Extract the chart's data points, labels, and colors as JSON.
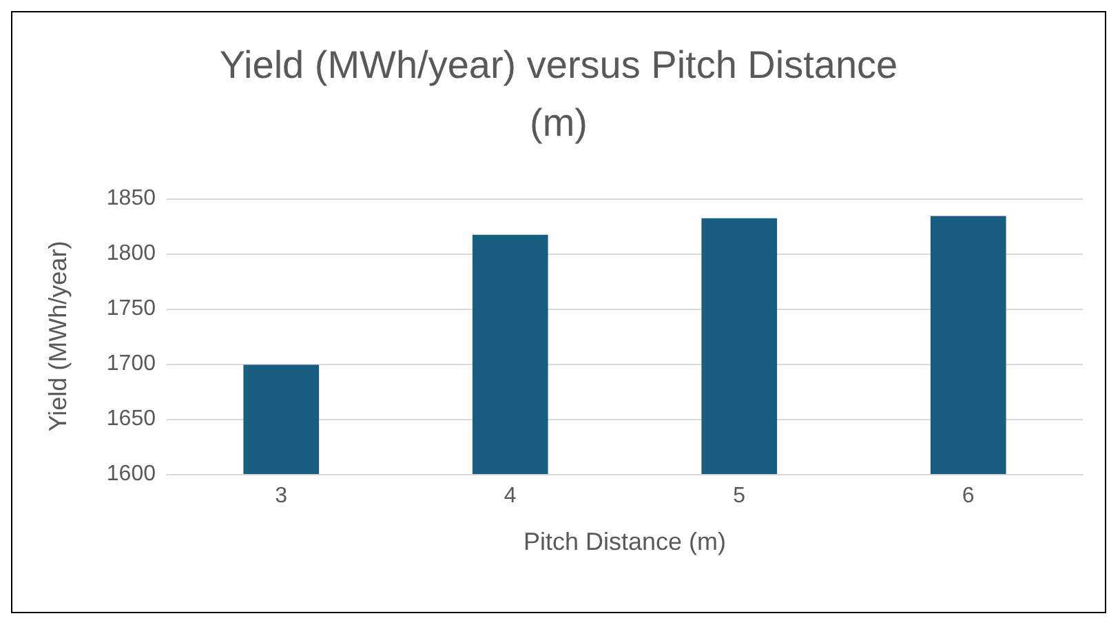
{
  "chart_data": {
    "type": "bar",
    "title": "Yield (MWh/year) versus Pitch Distance\n(m)",
    "xlabel": "Pitch Distance (m)",
    "ylabel": "Yield (MWh/year)",
    "categories": [
      "3",
      "4",
      "5",
      "6"
    ],
    "values": [
      1699,
      1817,
      1832,
      1834
    ],
    "color": "#175e80",
    "ylim": [
      1600,
      1850
    ],
    "yticks": [
      1600,
      1650,
      1700,
      1750,
      1800,
      1850
    ],
    "grid": "y"
  }
}
